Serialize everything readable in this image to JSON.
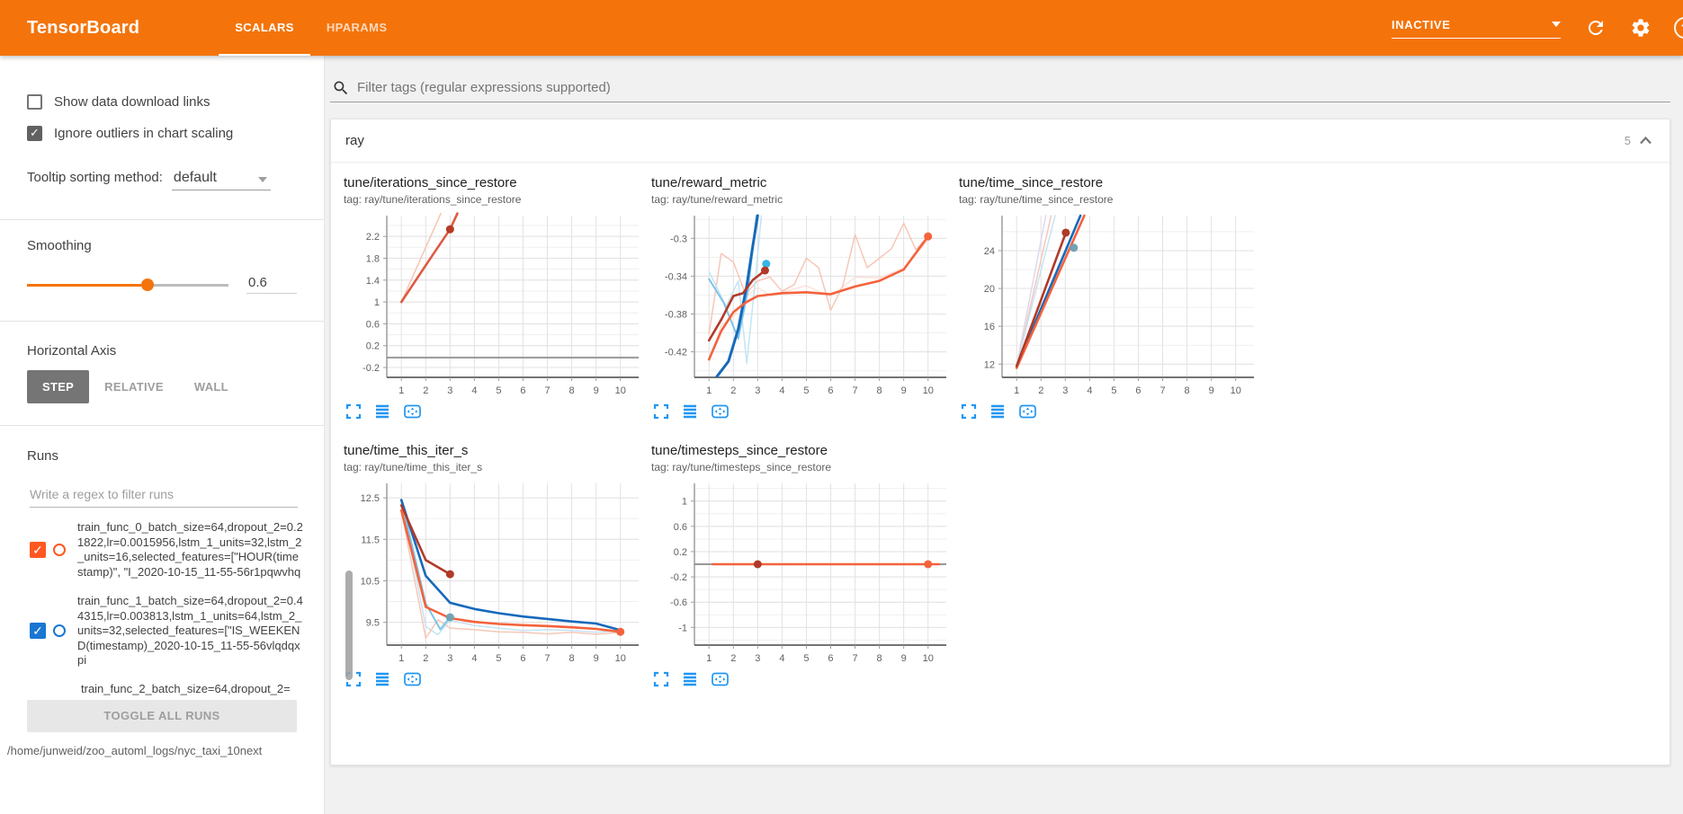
{
  "header": {
    "title": "TensorBoard",
    "tabs": [
      {
        "label": "SCALARS",
        "active": true
      },
      {
        "label": "HPARAMS",
        "active": false
      }
    ],
    "status": "INACTIVE",
    "help_glyph": "?"
  },
  "sidebar": {
    "checkboxes": [
      {
        "label": "Show data download links",
        "checked": false
      },
      {
        "label": "Ignore outliers in chart scaling",
        "checked": true
      }
    ],
    "tooltip_sorting": {
      "label": "Tooltip sorting method:",
      "value": "default"
    },
    "smoothing": {
      "label": "Smoothing",
      "value": "0.6"
    },
    "horizontal_axis": {
      "label": "Horizontal Axis",
      "options": [
        "STEP",
        "RELATIVE",
        "WALL"
      ],
      "selected": "STEP"
    },
    "runs": {
      "label": "Runs",
      "filter_placeholder": "Write a regex to filter runs",
      "items": [
        {
          "name": "train_func_0_batch_size=64,dropout_2=0.21822,lr=0.0015956,lstm_1_units=32,lstm_2_units=16,selected_features=[\"HOUR(timestamp)\", \"I_2020-10-15_11-55-56r1pqwvhq",
          "checked": true,
          "color": "#ff5722"
        },
        {
          "name": "train_func_1_batch_size=64,dropout_2=0.44315,lr=0.003813,lstm_1_units=64,lstm_2_units=32,selected_features=[\"IS_WEEKEND(timestamp)_2020-10-15_11-55-56vlqdqxpi",
          "checked": true,
          "color": "#1976d2"
        },
        {
          "name": "train_func_2_batch_size=64,dropout_2=",
          "partial": true
        }
      ],
      "toggle_all_label": "TOGGLE ALL RUNS",
      "log_dir": "/home/junweid/zoo_automl_logs/nyc_taxi_10next"
    }
  },
  "main": {
    "filter_placeholder": "Filter tags (regular expressions supported)",
    "section": {
      "title": "ray",
      "count": "5"
    }
  },
  "chart_data": [
    {
      "type": "line",
      "title": "tune/iterations_since_restore",
      "tag": "tag: ray/tune/iterations_since_restore",
      "xlim": [
        0.4,
        10.75
      ],
      "ylim": [
        -0.38,
        2.58
      ],
      "xticks": [
        1,
        2,
        3,
        4,
        5,
        6,
        7,
        8,
        9,
        10
      ],
      "yticks": [
        -0.2,
        0.2,
        0.6,
        1,
        1.4,
        1.8,
        2.2
      ],
      "series": [
        {
          "name": "gray-run",
          "color": "#8a8a8a",
          "width": 1.6,
          "points": [
            [
              0.4,
              -0.02
            ],
            [
              10.75,
              -0.02
            ]
          ]
        },
        {
          "name": "run0-raw",
          "color": "#f6c7b7",
          "width": 1.6,
          "points": [
            [
              1,
              1
            ],
            [
              2,
              2
            ],
            [
              2.62,
              2.62
            ]
          ]
        },
        {
          "name": "run0-smoothed",
          "color": "#dd5b41",
          "width": 2.6,
          "points": [
            [
              1,
              1
            ],
            [
              2,
              1.67
            ],
            [
              3,
              2.33
            ],
            [
              3.3,
              2.62
            ]
          ]
        }
      ],
      "markers": [
        {
          "x": 3,
          "y": 2.33,
          "color": "#b63a24"
        }
      ]
    },
    {
      "type": "line",
      "title": "tune/reward_metric",
      "tag": "tag: ray/tune/reward_metric",
      "xlim": [
        0.4,
        10.75
      ],
      "ylim": [
        -0.447,
        -0.276
      ],
      "xticks": [
        1,
        2,
        3,
        4,
        5,
        6,
        7,
        8,
        9,
        10
      ],
      "yticks": [
        -0.42,
        -0.38,
        -0.34,
        -0.3
      ],
      "series": [
        {
          "name": "run2-raw",
          "color": "#fbe3da",
          "width": 1.5,
          "points": [
            [
              1,
              -0.432
            ],
            [
              1.5,
              -0.392
            ],
            [
              2,
              -0.383
            ],
            [
              2.5,
              -0.362
            ],
            [
              3,
              -0.352
            ],
            [
              3.5,
              -0.36
            ],
            [
              4,
              -0.357
            ],
            [
              5,
              -0.35
            ],
            [
              6,
              -0.362
            ],
            [
              7,
              -0.341
            ],
            [
              8,
              -0.342
            ],
            [
              9,
              -0.331
            ],
            [
              10,
              -0.302
            ]
          ]
        },
        {
          "name": "run0-raw",
          "color": "#f6c7b7",
          "width": 1.5,
          "points": [
            [
              1,
              -0.401
            ],
            [
              1.5,
              -0.316
            ],
            [
              2,
              -0.325
            ],
            [
              2.5,
              -0.359
            ],
            [
              3,
              -0.345
            ],
            [
              3.5,
              -0.341
            ],
            [
              4,
              -0.356
            ],
            [
              4.5,
              -0.349
            ],
            [
              5,
              -0.321
            ],
            [
              5.5,
              -0.331
            ],
            [
              6,
              -0.376
            ],
            [
              6.5,
              -0.35
            ],
            [
              7,
              -0.296
            ],
            [
              7.5,
              -0.331
            ],
            [
              8,
              -0.321
            ],
            [
              8.5,
              -0.311
            ],
            [
              9,
              -0.284
            ],
            [
              9.5,
              -0.312
            ],
            [
              10,
              -0.298
            ]
          ]
        },
        {
          "name": "run1-raw",
          "color": "#c4e4f5",
          "width": 1.5,
          "points": [
            [
              1,
              -0.335
            ],
            [
              1.7,
              -0.372
            ],
            [
              2.2,
              -0.345
            ],
            [
              2.55,
              -0.432
            ],
            [
              2.9,
              -0.345
            ],
            [
              3.15,
              -0.276
            ]
          ]
        },
        {
          "name": "run1-light",
          "color": "#7cc4e8",
          "width": 2,
          "points": [
            [
              1,
              -0.343
            ],
            [
              1.6,
              -0.368
            ],
            [
              2.2,
              -0.406
            ],
            [
              2.6,
              -0.355
            ],
            [
              2.95,
              -0.276
            ]
          ]
        },
        {
          "name": "run1-smoothed",
          "color": "#1669bb",
          "width": 3,
          "points": [
            [
              1.3,
              -0.447
            ],
            [
              1.8,
              -0.43
            ],
            [
              2.2,
              -0.396
            ],
            [
              2.55,
              -0.35
            ],
            [
              2.8,
              -0.308
            ],
            [
              3,
              -0.276
            ]
          ]
        },
        {
          "name": "run2-smoothed",
          "color": "#b03a28",
          "width": 2.6,
          "points": [
            [
              1,
              -0.408
            ],
            [
              1.5,
              -0.386
            ],
            [
              2,
              -0.361
            ],
            [
              2.4,
              -0.358
            ],
            [
              2.8,
              -0.344
            ],
            [
              3.3,
              -0.334
            ]
          ]
        },
        {
          "name": "run0-smoothed",
          "color": "#f4623c",
          "width": 2.6,
          "points": [
            [
              1,
              -0.428
            ],
            [
              1.5,
              -0.398
            ],
            [
              2,
              -0.378
            ],
            [
              2.5,
              -0.368
            ],
            [
              3,
              -0.361
            ],
            [
              4,
              -0.358
            ],
            [
              5,
              -0.357
            ],
            [
              6,
              -0.359
            ],
            [
              7,
              -0.351
            ],
            [
              8,
              -0.345
            ],
            [
              9,
              -0.333
            ],
            [
              10,
              -0.298
            ]
          ]
        }
      ],
      "markers": [
        {
          "x": 3.35,
          "y": -0.327,
          "color": "#35b5e9"
        },
        {
          "x": 3.3,
          "y": -0.334,
          "color": "#b03a28"
        },
        {
          "x": 10,
          "y": -0.298,
          "color": "#f4623c"
        }
      ]
    },
    {
      "type": "line",
      "title": "tune/time_since_restore",
      "tag": "tag: ray/tune/time_since_restore",
      "xlim": [
        0.4,
        10.75
      ],
      "ylim": [
        10.6,
        27.7
      ],
      "xticks": [
        1,
        2,
        3,
        4,
        5,
        6,
        7,
        8,
        9,
        10
      ],
      "yticks": [
        12,
        16,
        20,
        24
      ],
      "series": [
        {
          "name": "run2-raw",
          "color": "#ded9ec",
          "width": 1.5,
          "points": [
            [
              1,
              11.85
            ],
            [
              2.2,
              27.7
            ]
          ]
        },
        {
          "name": "run0-raw",
          "color": "#f6c7b7",
          "width": 1.5,
          "points": [
            [
              1,
              11.8
            ],
            [
              2.42,
              27.7
            ]
          ]
        },
        {
          "name": "run1-raw",
          "color": "#c4e4f5",
          "width": 1.5,
          "points": [
            [
              1,
              11.9
            ],
            [
              2.58,
              27.7
            ]
          ]
        },
        {
          "name": "run1-smoothed",
          "color": "#1669bb",
          "width": 2.6,
          "points": [
            [
              1,
              11.75
            ],
            [
              3.62,
              27.7
            ]
          ]
        },
        {
          "name": "run0-smoothed",
          "color": "#f4623c",
          "width": 2.6,
          "points": [
            [
              1,
              11.6
            ],
            [
              3.78,
              27.7
            ]
          ]
        },
        {
          "name": "run2-smoothed",
          "color": "#b03a28",
          "width": 2.6,
          "points": [
            [
              1,
              11.8
            ],
            [
              3.02,
              25.9
            ]
          ]
        }
      ],
      "markers": [
        {
          "x": 3.02,
          "y": 25.9,
          "color": "#b03a28"
        },
        {
          "x": 3.35,
          "y": 24.3,
          "color": "#73a2b4"
        }
      ]
    },
    {
      "type": "line",
      "title": "tune/time_this_iter_s",
      "tag": "tag: ray/tune/time_this_iter_s",
      "xlim": [
        0.4,
        10.75
      ],
      "ylim": [
        8.95,
        12.85
      ],
      "xticks": [
        1,
        2,
        3,
        4,
        5,
        6,
        7,
        8,
        9,
        10
      ],
      "yticks": [
        9.5,
        10.5,
        11.5,
        12.5
      ],
      "series": [
        {
          "name": "run1-raw",
          "color": "#c4e4f5",
          "width": 1.5,
          "points": [
            [
              1,
              12.45
            ],
            [
              2,
              9.4
            ],
            [
              2.5,
              9.2
            ],
            [
              3,
              9.55
            ],
            [
              4,
              9.42
            ],
            [
              5,
              9.36
            ],
            [
              6,
              9.3
            ],
            [
              7,
              9.32
            ],
            [
              8,
              9.3
            ],
            [
              9,
              9.26
            ],
            [
              10,
              9.3
            ]
          ]
        },
        {
          "name": "run0-raw",
          "color": "#f6c7b7",
          "width": 1.5,
          "points": [
            [
              1,
              12.2
            ],
            [
              2,
              9.12
            ],
            [
              2.5,
              9.56
            ],
            [
              3,
              9.36
            ],
            [
              4,
              9.32
            ],
            [
              5,
              9.27
            ],
            [
              6,
              9.26
            ],
            [
              7,
              9.22
            ],
            [
              8,
              9.26
            ],
            [
              9,
              9.21
            ],
            [
              10,
              9.26
            ]
          ]
        },
        {
          "name": "run1-light",
          "color": "#7cc4e8",
          "width": 2,
          "points": [
            [
              1,
              12.45
            ],
            [
              2,
              9.95
            ],
            [
              2.6,
              9.33
            ],
            [
              3,
              9.62
            ]
          ]
        },
        {
          "name": "run1-smoothed",
          "color": "#1669bb",
          "width": 2.6,
          "points": [
            [
              1,
              12.45
            ],
            [
              2,
              10.62
            ],
            [
              3,
              9.97
            ],
            [
              4,
              9.82
            ],
            [
              5,
              9.72
            ],
            [
              6,
              9.64
            ],
            [
              7,
              9.58
            ],
            [
              8,
              9.52
            ],
            [
              9,
              9.47
            ],
            [
              10,
              9.31
            ]
          ]
        },
        {
          "name": "run2-smoothed",
          "color": "#b03a28",
          "width": 2.6,
          "points": [
            [
              1,
              12.32
            ],
            [
              2,
              11
            ],
            [
              3,
              10.66
            ]
          ]
        },
        {
          "name": "run0-smoothed",
          "color": "#f4623c",
          "width": 2.6,
          "points": [
            [
              1,
              12.2
            ],
            [
              2,
              9.87
            ],
            [
              3,
              9.6
            ],
            [
              4,
              9.51
            ],
            [
              5,
              9.46
            ],
            [
              6,
              9.43
            ],
            [
              7,
              9.41
            ],
            [
              8,
              9.38
            ],
            [
              9,
              9.34
            ],
            [
              10,
              9.27
            ]
          ]
        }
      ],
      "markers": [
        {
          "x": 3,
          "y": 10.66,
          "color": "#b03a28"
        },
        {
          "x": 3,
          "y": 9.62,
          "color": "#73a2b4"
        },
        {
          "x": 10,
          "y": 9.27,
          "color": "#f4623c"
        }
      ]
    },
    {
      "type": "line",
      "title": "tune/timesteps_since_restore",
      "tag": "tag: ray/tune/timesteps_since_restore",
      "xlim": [
        0.4,
        10.75
      ],
      "ylim": [
        -1.28,
        1.28
      ],
      "xticks": [
        1,
        2,
        3,
        4,
        5,
        6,
        7,
        8,
        9,
        10
      ],
      "yticks": [
        -1,
        -0.6,
        -0.2,
        0.2,
        0.6,
        1
      ],
      "series": [
        {
          "name": "gray-run",
          "color": "#8a8a8a",
          "width": 1.8,
          "points": [
            [
              0.4,
              0
            ],
            [
              10.75,
              0
            ]
          ]
        },
        {
          "name": "run0-smoothed",
          "color": "#f4623c",
          "width": 2.6,
          "points": [
            [
              1.15,
              0
            ],
            [
              10.45,
              0
            ]
          ]
        }
      ],
      "markers": [
        {
          "x": 3,
          "y": 0,
          "color": "#b03a28"
        },
        {
          "x": 10,
          "y": 0,
          "color": "#f4623c"
        }
      ]
    }
  ]
}
